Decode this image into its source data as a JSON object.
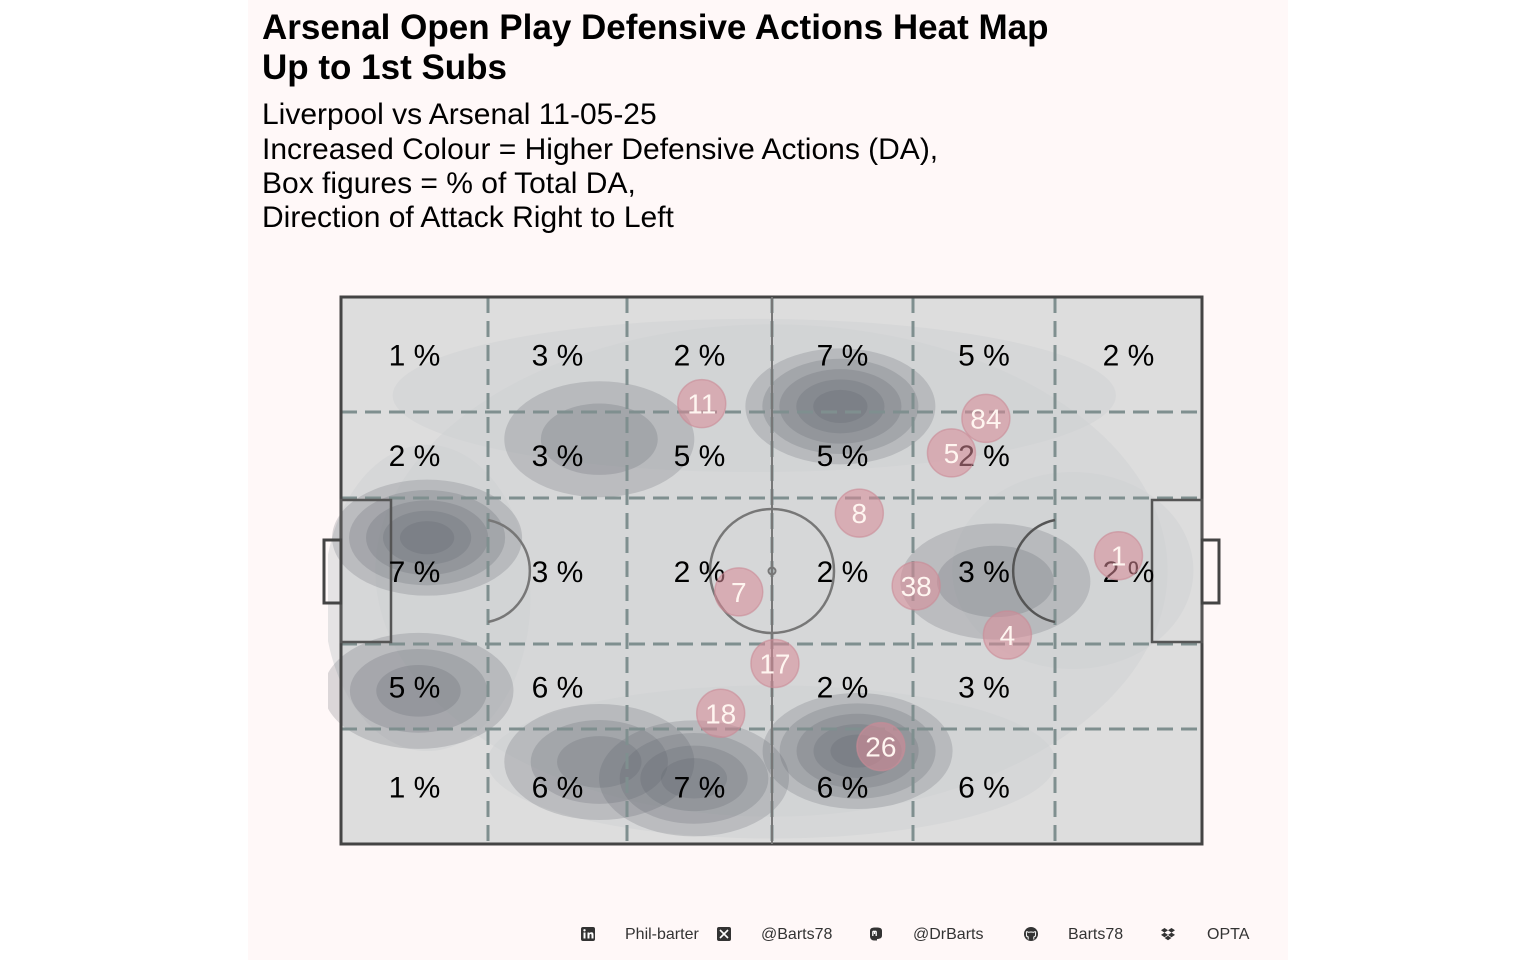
{
  "title_line1": "Arsenal  Open Play Defensive Actions Heat Map",
  "title_line2": "Up to 1st Subs",
  "subtitle": [
    "Liverpool vs Arsenal 11-05-25",
    "Increased Colour = Higher Defensive Actions (DA),",
    "Box figures = % of Total DA,",
    "Direction of Attack Right to Left"
  ],
  "colors": {
    "background": "#fff8f8",
    "pitch": "#dddddd",
    "lines": "#444444",
    "zone_lines": "#7f8f8f",
    "density": "#5a6068",
    "player_marker": "#d98a98",
    "player_text": "#fff5f0"
  },
  "chart_data": {
    "type": "heatmap",
    "grid": {
      "columns": 6,
      "rows": 5,
      "cells": [
        [
          "1 %",
          "3 %",
          "2 %",
          "7 %",
          "5 %",
          "2 %"
        ],
        [
          "2 %",
          "3 %",
          "5 %",
          "5 %",
          "2 %",
          ""
        ],
        [
          "7 %",
          "3 %",
          "2 %",
          "2 %",
          "3 %",
          "2 %"
        ],
        [
          "5 %",
          "6 %",
          "",
          "2 %",
          "3 %",
          ""
        ],
        [
          "1 %",
          "6 %",
          "7 %",
          "6 %",
          "6 %",
          ""
        ]
      ]
    },
    "density_peaks": [
      {
        "x": 0.58,
        "y": 0.2,
        "level": 5
      },
      {
        "x": 0.1,
        "y": 0.44,
        "level": 5
      },
      {
        "x": 0.6,
        "y": 0.83,
        "level": 5
      },
      {
        "x": 0.41,
        "y": 0.88,
        "level": 4
      },
      {
        "x": 0.3,
        "y": 0.85,
        "level": 3
      },
      {
        "x": 0.09,
        "y": 0.72,
        "level": 3
      },
      {
        "x": 0.3,
        "y": 0.26,
        "level": 2
      },
      {
        "x": 0.76,
        "y": 0.52,
        "level": 2
      }
    ],
    "players": [
      {
        "label": "11",
        "x": 0.419,
        "y": 0.195
      },
      {
        "label": "84",
        "x": 0.749,
        "y": 0.222
      },
      {
        "label": "5",
        "x": 0.709,
        "y": 0.285
      },
      {
        "label": "8",
        "x": 0.602,
        "y": 0.395
      },
      {
        "label": "1",
        "x": 0.903,
        "y": 0.473
      },
      {
        "label": "7",
        "x": 0.462,
        "y": 0.539
      },
      {
        "label": "38",
        "x": 0.668,
        "y": 0.528
      },
      {
        "label": "4",
        "x": 0.774,
        "y": 0.618
      },
      {
        "label": "17",
        "x": 0.504,
        "y": 0.67
      },
      {
        "label": "18",
        "x": 0.441,
        "y": 0.761
      },
      {
        "label": "26",
        "x": 0.627,
        "y": 0.822
      }
    ]
  },
  "footer": {
    "items": [
      {
        "icon": "linkedin-icon",
        "text": "Phil-barter"
      },
      {
        "icon": "x-twitter-icon",
        "text": "@Barts78"
      },
      {
        "icon": "mastodon-icon",
        "text": "@DrBarts"
      },
      {
        "icon": "github-icon",
        "text": "Barts78"
      },
      {
        "icon": "dropbox-icon",
        "text": "OPTA"
      }
    ]
  }
}
